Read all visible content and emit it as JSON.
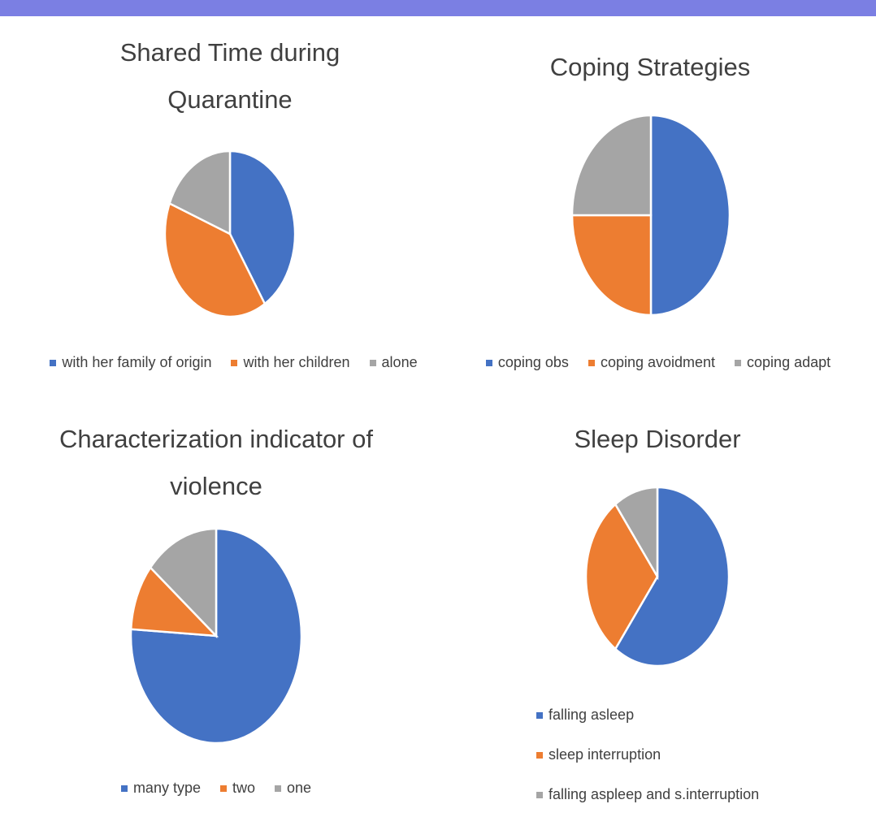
{
  "chart_data": [
    {
      "type": "pie",
      "title": "Shared Time during Quarantine",
      "categories": [
        "with her family of origin",
        "with her children",
        "alone"
      ],
      "values": [
        41,
        40,
        19
      ],
      "colors": [
        "#4472c4",
        "#ed7d31",
        "#a5a5a5"
      ],
      "legend": "bottom"
    },
    {
      "type": "pie",
      "title": "Coping Strategies",
      "categories": [
        "coping obs",
        "coping avoidment",
        "coping adapt"
      ],
      "values": [
        50,
        25,
        25
      ],
      "colors": [
        "#4472c4",
        "#ed7d31",
        "#a5a5a5"
      ],
      "legend": "bottom"
    },
    {
      "type": "pie",
      "title": "Characterization indicator of violence",
      "categories": [
        "many type",
        "two",
        "one"
      ],
      "values": [
        76,
        10,
        14
      ],
      "colors": [
        "#4472c4",
        "#ed7d31",
        "#a5a5a5"
      ],
      "legend": "bottom"
    },
    {
      "type": "pie",
      "title": "Sleep Disorder",
      "categories": [
        "falling asleep",
        "sleep interruption",
        "falling aspleep and s.interruption"
      ],
      "values": [
        60,
        30,
        10
      ],
      "colors": [
        "#4472c4",
        "#ed7d31",
        "#a5a5a5"
      ],
      "legend": "bottom"
    }
  ]
}
